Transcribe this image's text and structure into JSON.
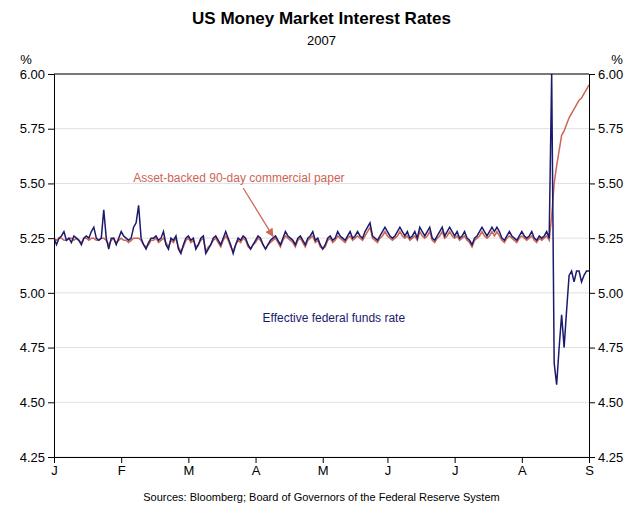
{
  "chart_data": {
    "type": "line",
    "title": "US Money Market Interest Rates",
    "subtitle": "2007",
    "source": "Sources: Bloomberg; Board of Governors of the Federal Reserve System",
    "ylabel": "%",
    "y2label": "%",
    "annotations": [
      "Asset-backed 90-day commercial paper",
      "Effective federal funds rate"
    ],
    "grid": true,
    "ylim": [
      4.25,
      6.0
    ],
    "yticks": [
      4.25,
      {
        "value": 4.5,
        "label": "4.50"
      },
      4.75,
      {
        "value": 5.0,
        "label": "5.00"
      },
      5.25,
      {
        "value": 5.5,
        "label": "5.50"
      },
      5.75,
      {
        "value": 6.0,
        "label": "6.00"
      }
    ],
    "y2lim": [
      4.25,
      6.0
    ],
    "y2ticks": [
      4.25,
      {
        "value": 4.5,
        "label": "4.50"
      },
      4.75,
      {
        "value": 5.0,
        "label": "5.00"
      },
      5.25,
      {
        "value": 5.5,
        "label": "5.50"
      },
      5.75,
      {
        "value": 6.0,
        "label": "6.00"
      }
    ],
    "categories": [
      "J",
      null,
      null,
      null,
      null,
      null,
      null,
      null,
      null,
      null,
      null,
      null,
      null,
      null,
      null,
      null,
      null,
      null,
      null,
      null,
      null,
      null,
      null,
      null,
      null,
      null,
      null,
      "F",
      null,
      null,
      null,
      null,
      null,
      null,
      null,
      null,
      null,
      null,
      null,
      null,
      null,
      null,
      null,
      null,
      null,
      null,
      null,
      null,
      null,
      null,
      null,
      null,
      null,
      null,
      "M",
      null,
      null,
      null,
      null,
      null,
      null,
      null,
      null,
      null,
      null,
      null,
      null,
      null,
      null,
      null,
      null,
      null,
      null,
      null,
      null,
      null,
      null,
      null,
      null,
      null,
      null,
      "A",
      null,
      null,
      null,
      null,
      null,
      null,
      null,
      null,
      null,
      null,
      null,
      null,
      null,
      null,
      null,
      null,
      null,
      null,
      null,
      null,
      null,
      null,
      null,
      null,
      null,
      null,
      "M",
      null,
      null,
      null,
      null,
      null,
      null,
      null,
      null,
      null,
      null,
      null,
      null,
      null,
      null,
      null,
      null,
      null,
      null,
      null,
      null,
      null,
      null,
      null,
      null,
      null,
      "J",
      null,
      null,
      null,
      null,
      null,
      null,
      null,
      null,
      null,
      null,
      null,
      null,
      null,
      null,
      null,
      null,
      null,
      null,
      null,
      null,
      null,
      null,
      null,
      null,
      null,
      null,
      "J",
      null,
      null,
      null,
      null,
      null,
      null,
      null,
      null,
      null,
      null,
      null,
      null,
      null,
      null,
      null,
      null,
      null,
      null,
      null,
      null,
      null,
      null,
      null,
      null,
      null,
      null,
      "A",
      null,
      null,
      null,
      null,
      null,
      null,
      null,
      null,
      null,
      null,
      null,
      null,
      null,
      null,
      null,
      null,
      null,
      null,
      null,
      null,
      null,
      null,
      null,
      null,
      null,
      null,
      "S"
    ],
    "series": [
      {
        "color": "#cc6655",
        "values": [
          5.25,
          5.24,
          5.25,
          5.25,
          5.24,
          5.24,
          5.25,
          5.25,
          5.24,
          5.25,
          5.24,
          5.23,
          5.25,
          5.25,
          5.24,
          5.25,
          5.25,
          5.24,
          5.24,
          5.25,
          5.25,
          5.24,
          5.22,
          5.24,
          5.25,
          5.23,
          5.24,
          5.25,
          5.24,
          5.24,
          5.23,
          5.24,
          5.25,
          5.25,
          5.25,
          5.24,
          5.22,
          5.21,
          5.22,
          5.24,
          5.24,
          5.25,
          5.23,
          5.24,
          5.25,
          5.23,
          5.21,
          5.24,
          5.23,
          5.25,
          5.21,
          5.19,
          5.21,
          5.24,
          5.25,
          5.23,
          5.24,
          5.21,
          5.22,
          5.24,
          5.25,
          5.19,
          5.21,
          5.22,
          5.24,
          5.25,
          5.23,
          5.21,
          5.24,
          5.26,
          5.24,
          5.21,
          5.19,
          5.22,
          5.24,
          5.23,
          5.25,
          5.24,
          5.21,
          5.2,
          5.22,
          5.23,
          5.25,
          5.24,
          5.22,
          5.2,
          5.22,
          5.23,
          5.24,
          5.25,
          5.23,
          5.21,
          5.24,
          5.26,
          5.25,
          5.24,
          5.23,
          5.21,
          5.24,
          5.25,
          5.23,
          5.21,
          5.24,
          5.25,
          5.26,
          5.23,
          5.24,
          5.21,
          5.2,
          5.21,
          5.24,
          5.25,
          5.23,
          5.24,
          5.26,
          5.25,
          5.24,
          5.23,
          5.25,
          5.26,
          5.24,
          5.25,
          5.26,
          5.25,
          5.24,
          5.26,
          5.28,
          5.3,
          5.25,
          5.24,
          5.23,
          5.25,
          5.26,
          5.28,
          5.26,
          5.25,
          5.24,
          5.25,
          5.26,
          5.28,
          5.26,
          5.25,
          5.26,
          5.24,
          5.25,
          5.26,
          5.24,
          5.28,
          5.26,
          5.25,
          5.26,
          5.28,
          5.24,
          5.23,
          5.25,
          5.26,
          5.28,
          5.25,
          5.26,
          5.28,
          5.26,
          5.25,
          5.26,
          5.24,
          5.25,
          5.26,
          5.24,
          5.23,
          5.21,
          5.24,
          5.25,
          5.26,
          5.28,
          5.26,
          5.25,
          5.26,
          5.28,
          5.26,
          5.28,
          5.26,
          5.24,
          5.23,
          5.25,
          5.26,
          5.25,
          5.24,
          5.23,
          5.25,
          5.26,
          5.25,
          5.24,
          5.25,
          5.26,
          5.24,
          5.23,
          5.25,
          5.24,
          5.25,
          5.26,
          5.24,
          5.35,
          5.5,
          5.58,
          5.65,
          5.72,
          5.74,
          5.77,
          5.8,
          5.82,
          5.84,
          5.86,
          5.88,
          5.89,
          5.91,
          5.93,
          5.95
        ]
      },
      {
        "color": "#1a1a6e",
        "values": [
          5.25,
          5.22,
          5.25,
          5.26,
          5.28,
          5.24,
          5.25,
          5.23,
          5.26,
          5.25,
          5.24,
          5.22,
          5.25,
          5.26,
          5.25,
          5.28,
          5.3,
          5.25,
          5.24,
          5.25,
          5.38,
          5.25,
          5.2,
          5.25,
          5.25,
          5.22,
          5.25,
          5.28,
          5.26,
          5.25,
          5.24,
          5.25,
          5.3,
          5.32,
          5.4,
          5.25,
          5.22,
          5.2,
          5.23,
          5.25,
          5.25,
          5.26,
          5.24,
          5.25,
          5.28,
          5.22,
          5.2,
          5.25,
          5.24,
          5.26,
          5.2,
          5.18,
          5.22,
          5.25,
          5.26,
          5.24,
          5.25,
          5.2,
          5.22,
          5.25,
          5.26,
          5.18,
          5.2,
          5.22,
          5.25,
          5.26,
          5.24,
          5.22,
          5.25,
          5.28,
          5.25,
          5.22,
          5.18,
          5.22,
          5.25,
          5.24,
          5.26,
          5.25,
          5.22,
          5.2,
          5.22,
          5.24,
          5.26,
          5.25,
          5.22,
          5.2,
          5.22,
          5.24,
          5.25,
          5.26,
          5.24,
          5.22,
          5.25,
          5.28,
          5.26,
          5.25,
          5.24,
          5.22,
          5.25,
          5.26,
          5.24,
          5.22,
          5.25,
          5.26,
          5.28,
          5.24,
          5.25,
          5.22,
          5.2,
          5.22,
          5.25,
          5.26,
          5.24,
          5.25,
          5.28,
          5.26,
          5.25,
          5.24,
          5.26,
          5.28,
          5.25,
          5.26,
          5.28,
          5.26,
          5.25,
          5.28,
          5.3,
          5.32,
          5.26,
          5.25,
          5.24,
          5.26,
          5.28,
          5.3,
          5.28,
          5.26,
          5.25,
          5.26,
          5.28,
          5.3,
          5.28,
          5.26,
          5.28,
          5.25,
          5.26,
          5.28,
          5.25,
          5.3,
          5.28,
          5.26,
          5.28,
          5.3,
          5.25,
          5.24,
          5.26,
          5.28,
          5.3,
          5.26,
          5.28,
          5.3,
          5.28,
          5.26,
          5.28,
          5.25,
          5.26,
          5.28,
          5.25,
          5.24,
          5.22,
          5.25,
          5.26,
          5.28,
          5.3,
          5.28,
          5.26,
          5.28,
          5.3,
          5.28,
          5.3,
          5.28,
          5.25,
          5.24,
          5.26,
          5.28,
          5.26,
          5.25,
          5.24,
          5.26,
          5.28,
          5.26,
          5.25,
          5.26,
          5.28,
          5.25,
          5.24,
          5.26,
          5.25,
          5.26,
          5.28,
          5.25,
          6.0,
          4.68,
          4.58,
          4.75,
          4.9,
          4.75,
          4.92,
          5.08,
          5.1,
          5.05,
          5.1,
          5.1,
          5.05,
          5.08,
          5.1,
          5.1
        ]
      }
    ]
  }
}
